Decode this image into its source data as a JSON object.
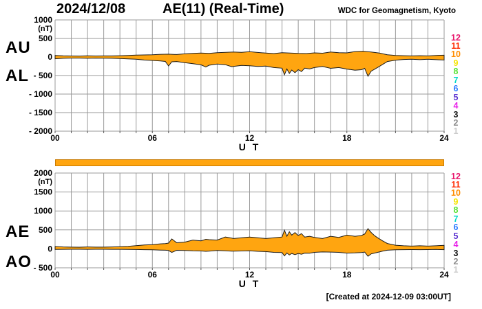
{
  "header": {
    "date": "2024/12/08",
    "title": "AE(11) (Real-Time)",
    "org": "WDC for Geomagnetism, Kyoto"
  },
  "footer": {
    "created": "[Created at 2024-12-09 03:00UT]"
  },
  "colors": {
    "area_fill": "#FFA510",
    "area_outline": "#1A1A1A",
    "grid": "#999999",
    "bar_fill": "#FFA510",
    "bar_border": "#C87A00"
  },
  "legend": {
    "numbers": [
      "12",
      "11",
      "10",
      "9",
      "8",
      "7",
      "6",
      "5",
      "4",
      "3",
      "2",
      "1"
    ],
    "colors": [
      "#E8186D",
      "#FF2A00",
      "#FF8C00",
      "#F5E400",
      "#58E234",
      "#00D8C8",
      "#2B7BFF",
      "#5A2FD0",
      "#E822E8",
      "#111111",
      "#8C8C8C",
      "#CBCBCB"
    ]
  },
  "chart_data": [
    {
      "type": "area",
      "name": "au-al",
      "left_labels": [
        "AU",
        "AL"
      ],
      "unit": "(nT)",
      "xlabel": "U T",
      "ylim": [
        -2000,
        1000
      ],
      "xlim": [
        0,
        24
      ],
      "grid": true,
      "yticks": {
        "values": [
          1000,
          500,
          0,
          -500,
          -1000,
          -1500,
          -2000
        ],
        "labels": [
          "1000",
          "500",
          "0",
          "- 500",
          "- 1000",
          "- 1500",
          "- 2000"
        ]
      },
      "xticks": {
        "hours": [
          0,
          6,
          12,
          18,
          24
        ],
        "labels": [
          "00",
          "06",
          "12",
          "18",
          "24"
        ]
      },
      "series": [
        {
          "name": "AU",
          "points": [
            [
              0,
              42
            ],
            [
              0.5,
              32
            ],
            [
              1,
              28
            ],
            [
              1.5,
              26
            ],
            [
              2,
              32
            ],
            [
              2.5,
              27
            ],
            [
              3,
              30
            ],
            [
              3.5,
              30
            ],
            [
              4,
              36
            ],
            [
              4.5,
              42
            ],
            [
              5,
              50
            ],
            [
              5.5,
              56
            ],
            [
              6,
              62
            ],
            [
              6.5,
              72
            ],
            [
              7,
              76
            ],
            [
              7.5,
              66
            ],
            [
              8,
              86
            ],
            [
              8.5,
              96
            ],
            [
              9,
              106
            ],
            [
              9.5,
              96
            ],
            [
              10,
              116
            ],
            [
              10.5,
              126
            ],
            [
              11,
              136
            ],
            [
              11.5,
              126
            ],
            [
              12,
              142
            ],
            [
              12.5,
              122
            ],
            [
              13,
              106
            ],
            [
              13.5,
              92
            ],
            [
              14,
              116
            ],
            [
              14.5,
              106
            ],
            [
              15,
              96
            ],
            [
              15.5,
              92
            ],
            [
              16,
              112
            ],
            [
              16.5,
              102
            ],
            [
              17,
              136
            ],
            [
              17.5,
              116
            ],
            [
              18,
              112
            ],
            [
              18.5,
              146
            ],
            [
              19,
              156
            ],
            [
              19.5,
              136
            ],
            [
              20,
              106
            ],
            [
              20.5,
              62
            ],
            [
              21,
              42
            ],
            [
              21.5,
              36
            ],
            [
              22,
              30
            ],
            [
              22.5,
              36
            ],
            [
              23,
              30
            ],
            [
              23.5,
              42
            ],
            [
              24,
              48
            ]
          ]
        },
        {
          "name": "AL",
          "points": [
            [
              0,
              -48
            ],
            [
              0.5,
              -36
            ],
            [
              1,
              -30
            ],
            [
              1.5,
              -30
            ],
            [
              2,
              -36
            ],
            [
              2.5,
              -30
            ],
            [
              3,
              -32
            ],
            [
              3.5,
              -36
            ],
            [
              4,
              -42
            ],
            [
              4.5,
              -50
            ],
            [
              5,
              -62
            ],
            [
              5.5,
              -82
            ],
            [
              6,
              -92
            ],
            [
              6.5,
              -108
            ],
            [
              6.8,
              -120
            ],
            [
              7,
              -240
            ],
            [
              7.2,
              -130
            ],
            [
              7.5,
              -122
            ],
            [
              8,
              -152
            ],
            [
              8.5,
              -182
            ],
            [
              9,
              -212
            ],
            [
              9.3,
              -270
            ],
            [
              9.5,
              -222
            ],
            [
              10,
              -188
            ],
            [
              10.5,
              -208
            ],
            [
              10.9,
              -262
            ],
            [
              11,
              -256
            ],
            [
              11.5,
              -226
            ],
            [
              12,
              -236
            ],
            [
              12.5,
              -256
            ],
            [
              13,
              -246
            ],
            [
              13.5,
              -286
            ],
            [
              14,
              -302
            ],
            [
              14.15,
              -480
            ],
            [
              14.3,
              -322
            ],
            [
              14.45,
              -442
            ],
            [
              14.6,
              -352
            ],
            [
              14.8,
              -422
            ],
            [
              15,
              -342
            ],
            [
              15.2,
              -392
            ],
            [
              15.4,
              -302
            ],
            [
              15.7,
              -322
            ],
            [
              16,
              -286
            ],
            [
              16.5,
              -256
            ],
            [
              17,
              -306
            ],
            [
              17.5,
              -286
            ],
            [
              18,
              -326
            ],
            [
              18.5,
              -356
            ],
            [
              18.9,
              -342
            ],
            [
              19.1,
              -306
            ],
            [
              19.3,
              -520
            ],
            [
              19.5,
              -382
            ],
            [
              19.7,
              -332
            ],
            [
              19.9,
              -282
            ],
            [
              20.2,
              -202
            ],
            [
              20.5,
              -122
            ],
            [
              21,
              -86
            ],
            [
              21.5,
              -66
            ],
            [
              22,
              -60
            ],
            [
              22.5,
              -72
            ],
            [
              23,
              -62
            ],
            [
              23.5,
              -72
            ],
            [
              24,
              -82
            ]
          ]
        }
      ]
    },
    {
      "type": "area",
      "name": "ae-ao",
      "left_labels": [
        "AE",
        "AO"
      ],
      "unit": "(nT)",
      "xlabel": "U T",
      "ylim": [
        -500,
        2000
      ],
      "xlim": [
        0,
        24
      ],
      "grid": true,
      "yticks": {
        "values": [
          2000,
          1500,
          1000,
          500,
          0,
          -500
        ],
        "labels": [
          "2000",
          "1500",
          "1000",
          "500",
          "0",
          "- 500"
        ]
      },
      "xticks": {
        "hours": [
          0,
          6,
          12,
          18,
          24
        ],
        "labels": [
          "00",
          "06",
          "12",
          "18",
          "24"
        ]
      },
      "series": [
        {
          "name": "AE",
          "points": [
            [
              0,
              62
            ],
            [
              0.5,
              50
            ],
            [
              1,
              46
            ],
            [
              1.5,
              44
            ],
            [
              2,
              50
            ],
            [
              2.5,
              46
            ],
            [
              3,
              46
            ],
            [
              3.5,
              50
            ],
            [
              4,
              56
            ],
            [
              4.5,
              66
            ],
            [
              5,
              86
            ],
            [
              5.5,
              102
            ],
            [
              6,
              112
            ],
            [
              6.5,
              132
            ],
            [
              6.8,
              140
            ],
            [
              7,
              152
            ],
            [
              7.2,
              262
            ],
            [
              7.5,
              162
            ],
            [
              8,
              178
            ],
            [
              8.5,
              232
            ],
            [
              9,
              212
            ],
            [
              9.3,
              252
            ],
            [
              9.5,
              242
            ],
            [
              10,
              232
            ],
            [
              10.5,
              312
            ],
            [
              10.9,
              282
            ],
            [
              11,
              272
            ],
            [
              11.5,
              292
            ],
            [
              12,
              312
            ],
            [
              12.5,
              292
            ],
            [
              13,
              272
            ],
            [
              13.5,
              292
            ],
            [
              14,
              312
            ],
            [
              14.15,
              492
            ],
            [
              14.3,
              332
            ],
            [
              14.45,
              452
            ],
            [
              14.6,
              362
            ],
            [
              14.8,
              432
            ],
            [
              15,
              352
            ],
            [
              15.2,
              402
            ],
            [
              15.4,
              312
            ],
            [
              15.7,
              332
            ],
            [
              16,
              302
            ],
            [
              16.5,
              272
            ],
            [
              17,
              332
            ],
            [
              17.5,
              302
            ],
            [
              18,
              362
            ],
            [
              18.5,
              332
            ],
            [
              18.9,
              352
            ],
            [
              19.1,
              392
            ],
            [
              19.3,
              532
            ],
            [
              19.5,
              432
            ],
            [
              19.7,
              352
            ],
            [
              19.9,
              292
            ],
            [
              20.2,
              212
            ],
            [
              20.5,
              142
            ],
            [
              21,
              96
            ],
            [
              21.5,
              82
            ],
            [
              22,
              72
            ],
            [
              22.5,
              82
            ],
            [
              23,
              72
            ],
            [
              23.5,
              82
            ],
            [
              24,
              92
            ]
          ]
        },
        {
          "name": "AO",
          "points": [
            [
              0,
              -16
            ],
            [
              0.5,
              -12
            ],
            [
              1,
              -10
            ],
            [
              1.5,
              -10
            ],
            [
              2,
              -12
            ],
            [
              2.5,
              -10
            ],
            [
              3,
              -10
            ],
            [
              3.5,
              -12
            ],
            [
              4,
              -12
            ],
            [
              4.5,
              -16
            ],
            [
              5,
              -18
            ],
            [
              5.5,
              -22
            ],
            [
              6,
              -26
            ],
            [
              6.5,
              -32
            ],
            [
              6.8,
              -36
            ],
            [
              7,
              -44
            ],
            [
              7.2,
              -94
            ],
            [
              7.5,
              -38
            ],
            [
              8,
              -42
            ],
            [
              8.5,
              -52
            ],
            [
              9,
              -56
            ],
            [
              9.3,
              -66
            ],
            [
              9.5,
              -62
            ],
            [
              10,
              -42
            ],
            [
              10.5,
              -52
            ],
            [
              10.9,
              -62
            ],
            [
              11,
              -62
            ],
            [
              11.5,
              -56
            ],
            [
              12,
              -52
            ],
            [
              12.5,
              -66
            ],
            [
              13,
              -72
            ],
            [
              13.5,
              -92
            ],
            [
              14,
              -96
            ],
            [
              14.15,
              -186
            ],
            [
              14.3,
              -108
            ],
            [
              14.45,
              -162
            ],
            [
              14.6,
              -122
            ],
            [
              14.8,
              -152
            ],
            [
              15,
              -122
            ],
            [
              15.2,
              -142
            ],
            [
              15.4,
              -112
            ],
            [
              15.7,
              -116
            ],
            [
              16,
              -92
            ],
            [
              16.5,
              -82
            ],
            [
              17,
              -86
            ],
            [
              17.5,
              -92
            ],
            [
              18,
              -112
            ],
            [
              18.5,
              -106
            ],
            [
              18.9,
              -96
            ],
            [
              19.1,
              -86
            ],
            [
              19.3,
              -196
            ],
            [
              19.5,
              -132
            ],
            [
              19.7,
              -112
            ],
            [
              19.9,
              -92
            ],
            [
              20.2,
              -62
            ],
            [
              20.5,
              -36
            ],
            [
              21,
              -26
            ],
            [
              21.5,
              -22
            ],
            [
              22,
              -20
            ],
            [
              22.5,
              -22
            ],
            [
              23,
              -20
            ],
            [
              23.5,
              -16
            ],
            [
              24,
              -22
            ]
          ]
        }
      ]
    }
  ]
}
